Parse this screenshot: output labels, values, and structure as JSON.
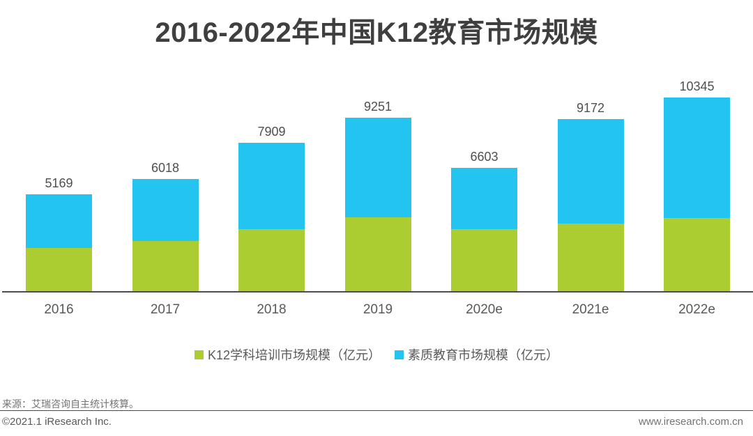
{
  "title": "2016-2022年中国K12教育市场规模",
  "chart_data": {
    "type": "bar",
    "stacked": true,
    "unit": "亿元",
    "categories": [
      "2016",
      "2017",
      "2018",
      "2019",
      "2020e",
      "2021e",
      "2022e"
    ],
    "series": [
      {
        "name": "K12学科培训市场规模（亿元）",
        "color": "#ACCD32",
        "values": [
          2320,
          2710,
          3330,
          3970,
          3330,
          3630,
          3930
        ]
      },
      {
        "name": "素质教育市场规模（亿元）",
        "color": "#23C4F0",
        "values": [
          2849,
          3308,
          4579,
          5281,
          3273,
          5542,
          6415
        ]
      }
    ],
    "totals": [
      5169,
      6018,
      7909,
      9251,
      6603,
      9172,
      10345
    ],
    "title": "2016-2022年中国K12教育市场规模",
    "xlabel": "",
    "ylabel": "",
    "grid": false,
    "legend_position": "bottom",
    "value_labels": "totals above each bar"
  },
  "legend": {
    "items": [
      {
        "label": "K12学科培训市场规模（亿元）",
        "color": "#ACCD32"
      },
      {
        "label": "素质教育市场规模（亿元）",
        "color": "#23C4F0"
      }
    ]
  },
  "footer": {
    "source": "来源：艾瑞咨询自主统计核算。",
    "copyright": "©2021.1 iResearch Inc.",
    "website": "www.iresearch.com.cn"
  }
}
